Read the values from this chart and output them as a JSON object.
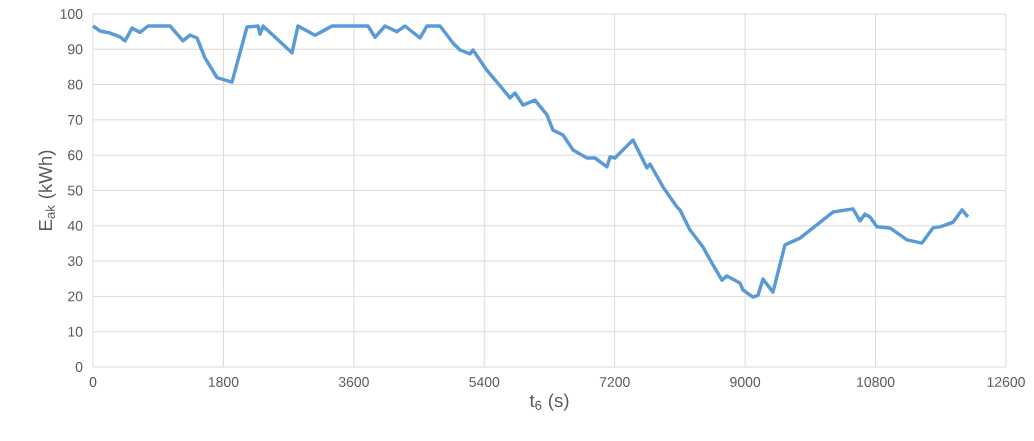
{
  "chart_data": {
    "type": "line",
    "xlabel": "t$_{6}$ (s)",
    "ylabel": "E$_{ak}$ (kWh)",
    "xlim": [
      0,
      12600
    ],
    "xticks": [
      0,
      1800,
      3600,
      5400,
      7200,
      9000,
      10800,
      12600
    ],
    "ylim": [
      0,
      100
    ],
    "yticks": [
      0,
      10,
      20,
      30,
      40,
      50,
      60,
      70,
      80,
      90,
      100
    ],
    "grid": true,
    "series": [
      {
        "color": "#5b9bd5",
        "x": [
          0,
          97,
          235,
          373,
          442,
          538,
          649,
          759,
          1063,
          1242,
          1339,
          1435,
          1546,
          1711,
          1918,
          2125,
          2277,
          2305,
          2346,
          2746,
          2829,
          3064,
          3202,
          3298,
          3795,
          3892,
          4030,
          4195,
          4306,
          4513,
          4609,
          4789,
          4968,
          5065,
          5203,
          5244,
          5437,
          5575,
          5755,
          5824,
          5934,
          6100,
          6265,
          6348,
          6486,
          6624,
          6817,
          6928,
          7093,
          7135,
          7204,
          7314,
          7452,
          7645,
          7687,
          7866,
          8059,
          8101,
          8239,
          8418,
          8556,
          8680,
          8749,
          8929,
          8970,
          9108,
          9177,
          9246,
          9384,
          9550,
          9757,
          9936,
          10212,
          10488,
          10585,
          10654,
          10723,
          10819,
          10999,
          11233,
          11440,
          11592,
          11689,
          11868,
          11992,
          12075
        ],
        "values": [
          96.6,
          95.2,
          94.6,
          93.5,
          92.4,
          96,
          94.8,
          96.6,
          96.6,
          92.4,
          94,
          93.2,
          87.5,
          82,
          80.7,
          96.3,
          96.6,
          94.3,
          96.6,
          89,
          96.6,
          94,
          95.5,
          96.6,
          96.6,
          93.4,
          96.6,
          95,
          96.6,
          93.2,
          96.6,
          96.6,
          91.8,
          89.8,
          88.7,
          89.8,
          84,
          80.7,
          76.2,
          77.6,
          74.2,
          75.6,
          71.4,
          67.1,
          65.7,
          61.5,
          59.2,
          59.2,
          56.7,
          59.5,
          59.2,
          61.5,
          64.3,
          56.4,
          57.5,
          51,
          45.3,
          44.5,
          38.8,
          34,
          28.9,
          24.6,
          25.8,
          23.8,
          21.8,
          19.8,
          20.3,
          24.9,
          21.2,
          34.6,
          36.5,
          39.4,
          43.9,
          44.8,
          41.4,
          43.3,
          42.5,
          39.7,
          39.4,
          36,
          35.1,
          39.4,
          39.7,
          41,
          44.5,
          42.5
        ]
      }
    ]
  }
}
